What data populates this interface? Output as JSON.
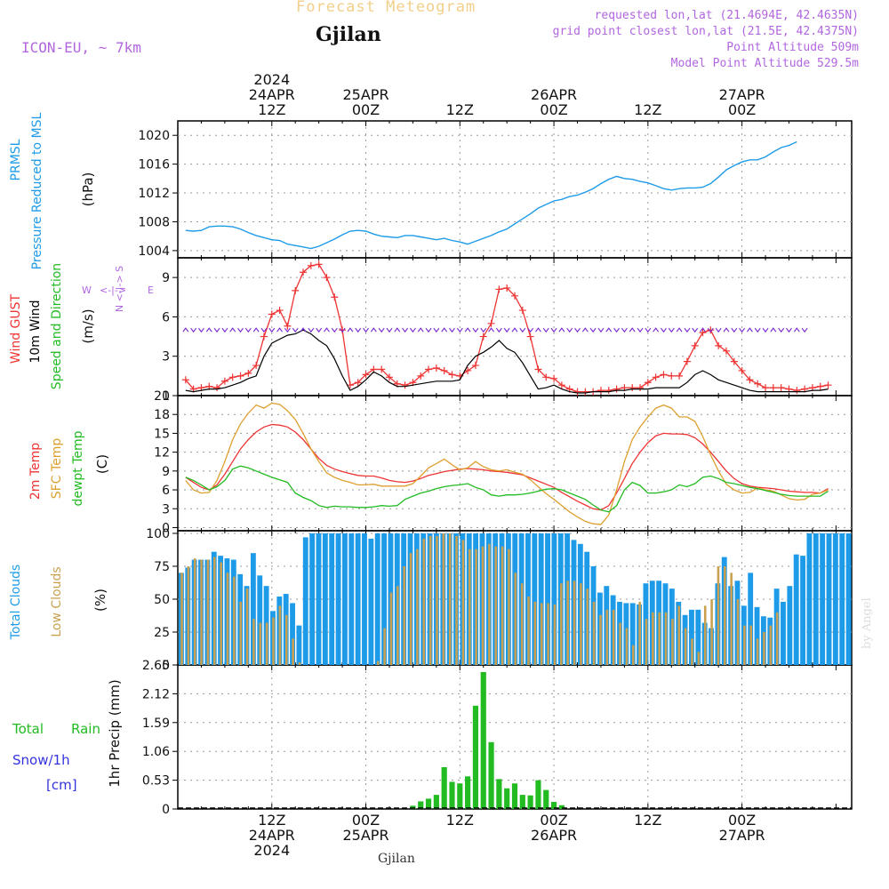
{
  "header": {
    "banner": "Forecast Meteogram",
    "location": "Gjilan",
    "model": "ICON-EU, ~ 7km",
    "requested": "requested lon,lat (21.4694E, 42.4635N)",
    "grid_point": "grid point closest lon,lat (21.5E, 42.4375N)",
    "point_altitude": "Point Altitude 509m",
    "model_altitude": "Model Point Altitude 529.5m",
    "footer_location": "Gjilan",
    "credit": "by Angel"
  },
  "time_axis": {
    "top_labels": [
      {
        "t": 12,
        "lines": [
          "2024",
          "24APR",
          "12Z"
        ]
      },
      {
        "t": 24,
        "lines": [
          "25APR",
          "00Z"
        ]
      },
      {
        "t": 36,
        "lines": [
          "12Z"
        ]
      },
      {
        "t": 48,
        "lines": [
          "26APR",
          "00Z"
        ]
      },
      {
        "t": 60,
        "lines": [
          "12Z"
        ]
      },
      {
        "t": 72,
        "lines": [
          "27APR",
          "00Z"
        ]
      }
    ],
    "bottom_labels": [
      {
        "t": 12,
        "lines": [
          "12Z",
          "24APR",
          "2024"
        ]
      },
      {
        "t": 24,
        "lines": [
          "00Z",
          "25APR"
        ]
      },
      {
        "t": 36,
        "lines": [
          "12Z"
        ]
      },
      {
        "t": 48,
        "lines": [
          "00Z",
          "26APR"
        ]
      },
      {
        "t": 60,
        "lines": [
          "12Z"
        ]
      },
      {
        "t": 72,
        "lines": [
          "00Z",
          "27APR"
        ]
      }
    ]
  },
  "colors": {
    "pressure": "#1e9be8",
    "gust": "#ee3333",
    "wind": "#000000",
    "temp": "#ee3333",
    "sfc": "#dda030",
    "dew": "#22bb22",
    "total_cloud": "#1e9be8",
    "low_cloud": "#c8a050",
    "rain": "#22bb22",
    "snow": "#3333dd",
    "arrow": "#7722cc"
  },
  "panels": {
    "pressure": {
      "label1": "PRMSL",
      "label2": "Pressure Reduced to MSL",
      "unit": "(hPa)"
    },
    "wind": {
      "label1": "Wind GUST",
      "label2": "10m Wind",
      "label3": "Speed and Direction",
      "unit": "(m/s)",
      "compass_ns": "N <-|-> S",
      "compass_w": "W",
      "compass_e": "E",
      "compass_mid": "<-|->"
    },
    "temp": {
      "label1": "2m Temp",
      "label2": "SFC Temp",
      "label3": "dewpt Temp",
      "unit": "(C)"
    },
    "cloud": {
      "label1": "Total Clouds",
      "label2": "Low Clouds",
      "unit": "(%)"
    },
    "precip": {
      "label_total": "Total",
      "label_rain": "Rain",
      "label_snow": "Snow/1h",
      "label_cm": "[cm]",
      "unit": "1hr Precip (mm)"
    }
  },
  "chart_data": [
    {
      "type": "line",
      "title": "PRMSL Pressure Reduced to MSL",
      "ylabel": "(hPa)",
      "ylim": [
        1003,
        1022
      ],
      "yticks": [
        1004,
        1008,
        1012,
        1016,
        1020
      ],
      "x_start": 1,
      "x_step": 1,
      "series": [
        {
          "name": "PRMSL",
          "values": [
            1006.8,
            1006.7,
            1006.8,
            1007.3,
            1007.4,
            1007.4,
            1007.3,
            1007.0,
            1006.5,
            1006.1,
            1005.8,
            1005.5,
            1005.4,
            1004.9,
            1004.7,
            1004.5,
            1004.3,
            1004.6,
            1005.1,
            1005.6,
            1006.2,
            1006.7,
            1006.8,
            1006.7,
            1006.3,
            1006.0,
            1005.9,
            1005.8,
            1006.1,
            1006.1,
            1005.9,
            1005.7,
            1005.5,
            1005.7,
            1005.4,
            1005.2,
            1004.9,
            1005.3,
            1005.7,
            1006.1,
            1006.6,
            1007.0,
            1007.7,
            1008.4,
            1009.1,
            1009.9,
            1010.4,
            1010.9,
            1011.1,
            1011.5,
            1011.7,
            1012.1,
            1012.6,
            1013.3,
            1013.9,
            1014.3,
            1014.0,
            1013.9,
            1013.6,
            1013.4,
            1013.0,
            1012.6,
            1012.4,
            1012.6,
            1012.7,
            1012.7,
            1012.8,
            1013.3,
            1014.2,
            1015.2,
            1015.8,
            1016.3,
            1016.6,
            1016.6,
            1017.0,
            1017.7,
            1018.3,
            1018.6,
            1019.1
          ]
        }
      ]
    },
    {
      "type": "line",
      "title": "Wind GUST / 10m Wind",
      "ylabel": "(m/s)",
      "ylim": [
        0,
        10.5
      ],
      "yticks": [
        0,
        3,
        6,
        9
      ],
      "x_start": 1,
      "x_step": 1,
      "series": [
        {
          "name": "Wind GUST",
          "values": [
            1.2,
            0.5,
            0.6,
            0.7,
            0.6,
            1.1,
            1.4,
            1.5,
            1.7,
            2.3,
            4.5,
            6.2,
            6.5,
            5.3,
            8.0,
            9.4,
            9.9,
            10.0,
            9.0,
            7.5,
            5.0,
            0.8,
            1.0,
            1.6,
            2.0,
            2.0,
            1.4,
            0.9,
            0.8,
            1.0,
            1.5,
            2.0,
            2.1,
            1.9,
            1.6,
            1.5,
            1.9,
            2.3,
            4.5,
            5.5,
            8.1,
            8.2,
            7.6,
            6.5,
            4.5,
            2.0,
            1.4,
            1.3,
            0.8,
            0.5,
            0.3,
            0.3,
            0.3,
            0.4,
            0.4,
            0.5,
            0.6,
            0.6,
            0.6,
            1.0,
            1.4,
            1.6,
            1.5,
            1.5,
            2.6,
            3.8,
            4.8,
            5.0,
            3.8,
            3.4,
            2.6,
            1.9,
            1.2,
            0.9,
            0.6,
            0.6,
            0.6,
            0.5,
            0.4,
            0.5,
            0.6,
            0.7,
            0.8
          ]
        },
        {
          "name": "10m Wind",
          "values": [
            0.4,
            0.3,
            0.4,
            0.5,
            0.5,
            0.6,
            0.8,
            1.0,
            1.3,
            1.5,
            3.0,
            4.0,
            4.3,
            4.6,
            4.7,
            5.0,
            4.7,
            4.2,
            3.8,
            2.8,
            1.5,
            0.4,
            0.7,
            1.2,
            1.8,
            1.5,
            1.0,
            0.7,
            0.7,
            0.8,
            0.9,
            1.0,
            1.1,
            1.1,
            1.1,
            1.2,
            2.3,
            3.0,
            3.3,
            3.7,
            4.2,
            3.6,
            3.3,
            2.5,
            1.5,
            0.5,
            0.6,
            0.8,
            0.5,
            0.3,
            0.2,
            0.2,
            0.3,
            0.3,
            0.3,
            0.4,
            0.4,
            0.5,
            0.5,
            0.5,
            0.6,
            0.6,
            0.6,
            0.6,
            1.0,
            1.6,
            1.9,
            1.6,
            1.2,
            1.0,
            0.8,
            0.6,
            0.4,
            0.3,
            0.3,
            0.3,
            0.3,
            0.3,
            0.3,
            0.3,
            0.4,
            0.4,
            0.5
          ]
        }
      ]
    },
    {
      "type": "line",
      "title": "2m Temp / SFC Temp / dewpt Temp",
      "ylabel": "(C)",
      "ylim": [
        -0.5,
        21
      ],
      "yticks": [
        0,
        3,
        6,
        9,
        12,
        15,
        18,
        21
      ],
      "x_start": 1,
      "x_step": 1,
      "series": [
        {
          "name": "2m Temp",
          "values": [
            8.0,
            7.2,
            6.4,
            6.0,
            6.8,
            8.5,
            10.5,
            12.5,
            14.0,
            15.2,
            16.0,
            16.4,
            16.3,
            16.0,
            15.2,
            14.0,
            12.5,
            11.0,
            9.9,
            9.3,
            8.9,
            8.6,
            8.3,
            8.2,
            8.2,
            7.9,
            7.5,
            7.3,
            7.2,
            7.4,
            7.8,
            8.3,
            8.6,
            8.9,
            9.1,
            9.3,
            9.4,
            9.3,
            9.2,
            9.0,
            8.9,
            8.8,
            8.6,
            8.4,
            7.9,
            7.4,
            6.9,
            6.4,
            5.6,
            4.9,
            4.2,
            3.6,
            3.0,
            2.8,
            3.5,
            5.5,
            7.8,
            10.2,
            12.0,
            13.5,
            14.6,
            15.0,
            14.9,
            14.9,
            14.8,
            14.3,
            13.3,
            12.0,
            10.5,
            9.0,
            7.8,
            7.0,
            6.6,
            6.4,
            6.3,
            6.2,
            6.0,
            5.8,
            5.7,
            5.6,
            5.6,
            5.5,
            6.2
          ]
        },
        {
          "name": "SFC Temp",
          "values": [
            7.5,
            6.0,
            5.5,
            5.6,
            7.5,
            10.5,
            14.0,
            16.5,
            18.2,
            19.5,
            19.0,
            19.8,
            19.6,
            18.6,
            17.2,
            15.0,
            12.5,
            10.5,
            8.7,
            8.0,
            7.5,
            7.2,
            6.8,
            6.8,
            6.9,
            6.6,
            6.6,
            6.6,
            6.6,
            7.0,
            8.2,
            9.5,
            10.2,
            10.9,
            10.0,
            9.2,
            9.5,
            10.5,
            9.7,
            9.2,
            9.0,
            9.2,
            8.8,
            8.5,
            7.6,
            6.5,
            5.4,
            4.5,
            3.5,
            2.5,
            1.7,
            1.0,
            0.6,
            0.5,
            2.0,
            6.0,
            10.5,
            14.0,
            16.0,
            17.6,
            19.0,
            19.5,
            19.0,
            17.6,
            17.6,
            16.9,
            14.5,
            11.6,
            9.0,
            6.9,
            6.0,
            5.5,
            5.6,
            6.3,
            6.0,
            5.8,
            5.2,
            4.6,
            4.4,
            4.5,
            5.3,
            5.5,
            6.0
          ]
        },
        {
          "name": "dewpt Temp",
          "values": [
            8.0,
            7.5,
            6.8,
            6.0,
            6.5,
            7.5,
            9.3,
            9.8,
            9.5,
            9.0,
            8.5,
            8.0,
            7.6,
            7.2,
            5.5,
            4.8,
            4.3,
            3.5,
            3.2,
            3.4,
            3.3,
            3.3,
            3.2,
            3.2,
            3.3,
            3.5,
            3.4,
            3.5,
            4.5,
            5.0,
            5.5,
            5.8,
            6.2,
            6.5,
            6.7,
            6.8,
            7.0,
            6.4,
            6.0,
            5.2,
            5.0,
            5.2,
            5.2,
            5.3,
            5.5,
            5.8,
            6.1,
            6.2,
            6.0,
            5.5,
            5.0,
            4.5,
            3.6,
            2.8,
            2.5,
            3.5,
            6.0,
            7.2,
            6.7,
            5.5,
            5.5,
            5.7,
            6.0,
            6.8,
            6.5,
            7.0,
            8.0,
            8.2,
            7.8,
            7.2,
            7.0,
            6.7,
            6.4,
            6.2,
            5.9,
            5.6,
            5.3,
            5.1,
            5.0,
            5.0,
            5.0,
            5.0,
            5.8
          ]
        }
      ]
    },
    {
      "type": "bar",
      "title": "Total Clouds / Low Clouds",
      "ylabel": "(%)",
      "ylim": [
        0,
        102
      ],
      "yticks": [
        0,
        25,
        50,
        75,
        100
      ],
      "x_start": 1,
      "x_step": 1,
      "series": [
        {
          "name": "Total Clouds",
          "values": [
            70,
            74,
            80,
            80,
            80,
            86,
            83,
            81,
            80,
            69,
            60,
            85,
            68,
            60,
            41,
            52,
            54,
            47,
            30,
            97,
            100,
            100,
            100,
            100,
            100,
            100,
            100,
            100,
            100,
            96,
            100,
            100,
            100,
            100,
            100,
            100,
            100,
            100,
            100,
            100,
            100,
            100,
            100,
            100,
            100,
            100,
            100,
            100,
            100,
            100,
            100,
            100,
            100,
            100,
            100,
            100,
            100,
            100,
            100,
            100,
            95,
            92,
            86,
            75,
            55,
            60,
            53,
            48,
            47,
            47,
            46,
            62,
            64,
            64,
            62,
            58,
            48,
            38,
            42,
            42,
            32,
            28,
            62,
            82,
            60,
            64,
            45,
            70,
            44,
            37,
            36,
            58,
            48,
            60,
            84,
            83,
            100,
            100,
            100,
            100,
            100,
            100,
            100
          ]
        },
        {
          "name": "Low Clouds",
          "values": [
            70,
            75,
            81,
            80,
            80,
            82,
            78,
            70,
            67,
            48,
            58,
            35,
            32,
            32,
            36,
            45,
            38,
            20,
            2,
            0,
            0,
            0,
            0,
            0,
            0,
            0,
            0,
            0,
            0,
            0,
            3,
            28,
            55,
            60,
            75,
            85,
            88,
            96,
            98,
            98,
            100,
            100,
            98,
            95,
            88,
            88,
            90,
            92,
            90,
            90,
            88,
            70,
            62,
            52,
            48,
            47,
            47,
            46,
            62,
            64,
            64,
            62,
            58,
            48,
            38,
            42,
            42,
            32,
            28,
            15,
            48,
            35,
            40,
            40,
            40,
            35,
            45,
            28,
            20,
            10,
            45,
            50,
            75,
            75,
            70,
            50,
            30,
            30,
            20,
            25,
            30,
            40
          ]
        }
      ]
    },
    {
      "type": "bar",
      "title": "1hr Precip (mm)",
      "ylabel": "1hr Precip (mm)",
      "ylim": [
        0,
        2.65
      ],
      "yticks": [
        0,
        0.53,
        1.06,
        1.59,
        2.12,
        2.65
      ],
      "x_start": 1,
      "x_step": 1,
      "series": [
        {
          "name": "Total Rain",
          "values": [
            0,
            0,
            0,
            0,
            0,
            0,
            0,
            0,
            0,
            0,
            0,
            0,
            0,
            0,
            0,
            0,
            0,
            0,
            0,
            0,
            0,
            0,
            0,
            0,
            0,
            0,
            0,
            0,
            0,
            0.06,
            0.14,
            0.19,
            0.26,
            0.77,
            0.5,
            0.47,
            0.6,
            1.9,
            2.52,
            1.23,
            0.55,
            0.38,
            0.47,
            0.26,
            0.25,
            0.53,
            0.35,
            0.13,
            0.07,
            0,
            0,
            0,
            0,
            0,
            0,
            0,
            0,
            0,
            0,
            0,
            0,
            0,
            0,
            0,
            0,
            0,
            0,
            0,
            0,
            0,
            0,
            0,
            0,
            0,
            0,
            0,
            0,
            0,
            0,
            0,
            0,
            0,
            0,
            0,
            0,
            0,
            0
          ]
        }
      ]
    }
  ]
}
